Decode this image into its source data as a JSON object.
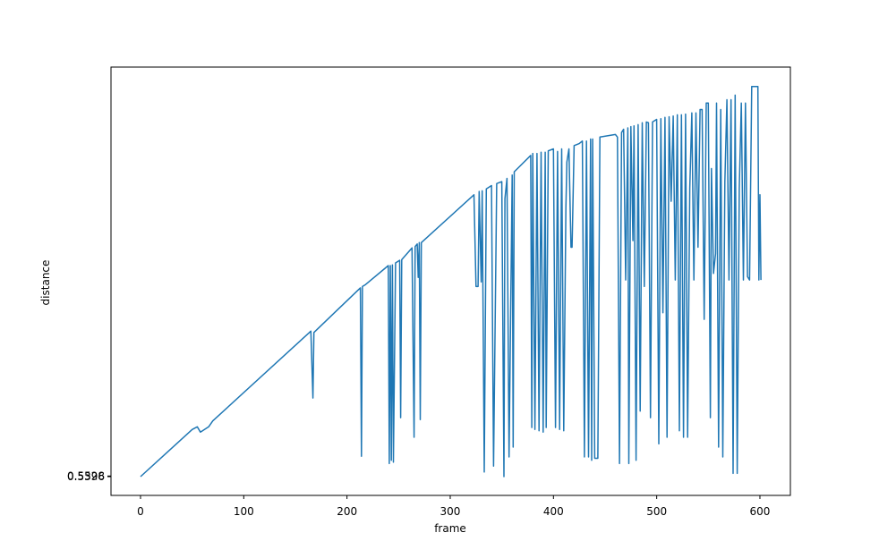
{
  "chart_data": {
    "type": "line",
    "xlabel": "frame",
    "ylabel": "distance",
    "xlim": [
      -28.6,
      629.5
    ],
    "xticks": [
      0,
      100,
      200,
      300,
      400,
      500,
      600
    ],
    "ylim": [
      -28.6,
      624.8
    ],
    "yticks": [
      {
        "value": 0,
        "label": "0.5396"
      },
      {
        "value": 1,
        "label": "0.5528"
      }
    ],
    "series": [
      {
        "name": "distance",
        "color": "#1f77b4",
        "x": [
          0,
          50,
          55,
          58,
          62,
          66,
          70,
          165,
          167,
          168,
          213,
          214,
          215,
          218,
          240,
          241,
          242,
          243,
          244,
          245,
          247,
          251,
          252,
          253,
          263,
          265,
          266,
          268,
          269,
          270,
          271,
          272,
          323,
          325,
          327,
          328,
          330,
          331,
          333,
          335,
          340,
          342,
          345,
          350,
          352,
          353,
          355,
          357,
          360,
          361,
          362,
          378,
          379,
          380,
          382,
          384,
          386,
          388,
          390,
          392,
          393,
          395,
          400,
          402,
          404,
          406,
          408,
          410,
          412,
          413,
          415,
          417,
          418,
          420,
          425,
          428,
          430,
          432,
          434,
          436,
          437,
          438,
          440,
          443,
          445,
          460,
          462,
          464,
          466,
          468,
          470,
          472,
          473,
          475,
          477,
          478,
          480,
          482,
          484,
          486,
          488,
          490,
          492,
          494,
          496,
          500,
          502,
          504,
          506,
          508,
          510,
          512,
          514,
          516,
          518,
          520,
          522,
          524,
          526,
          528,
          530,
          532,
          534,
          536,
          538,
          540,
          542,
          544,
          546,
          548,
          550,
          552,
          553,
          555,
          557,
          558,
          560,
          562,
          564,
          566,
          568,
          570,
          572,
          574,
          576,
          578,
          580,
          582,
          584,
          586,
          588,
          590,
          592,
          598,
          599,
          600,
          601
        ],
        "values": [
          0,
          72,
          76,
          68,
          72,
          76,
          85,
          222,
          120,
          220,
          288,
          31,
          290,
          293,
          322,
          20,
          322,
          25,
          323,
          22,
          326,
          330,
          90,
          331,
          349,
          60,
          351,
          355,
          304,
          357,
          87,
          357,
          430,
          290,
          290,
          435,
          297,
          436,
          7,
          439,
          444,
          16,
          447,
          450,
          0,
          424,
          455,
          30,
          460,
          45,
          465,
          490,
          75,
          493,
          72,
          493,
          70,
          495,
          68,
          495,
          75,
          497,
          500,
          75,
          496,
          72,
          500,
          70,
          410,
          480,
          500,
          350,
          350,
          505,
          508,
          512,
          30,
          512,
          30,
          515,
          25,
          515,
          28,
          28,
          518,
          522,
          518,
          20,
          525,
          530,
          300,
          532,
          20,
          534,
          360,
          535,
          25,
          537,
          100,
          540,
          290,
          541,
          540,
          90,
          541,
          545,
          50,
          546,
          250,
          548,
          60,
          549,
          420,
          550,
          300,
          552,
          70,
          552,
          60,
          553,
          60,
          440,
          555,
          300,
          555,
          350,
          560,
          560,
          240,
          570,
          570,
          90,
          470,
          310,
          340,
          570,
          45,
          560,
          30,
          450,
          575,
          300,
          575,
          5,
          582,
          5,
          440,
          570,
          300,
          570,
          305,
          300,
          595,
          595,
          300,
          430,
          300
        ]
      }
    ]
  }
}
